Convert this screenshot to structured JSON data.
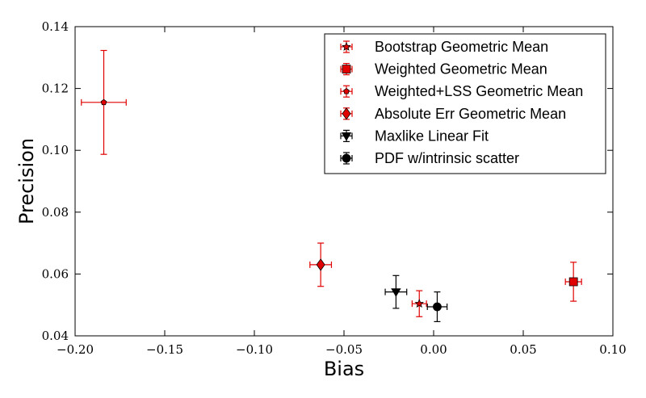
{
  "chart_data": {
    "type": "scatter",
    "title": "",
    "xlabel": "Bias",
    "ylabel": "Precision",
    "xlim": [
      -0.2,
      0.1
    ],
    "ylim": [
      0.04,
      0.14
    ],
    "x_ticks": [
      "−0.20",
      "−0.15",
      "−0.10",
      "−0.05",
      "0.00",
      "0.05",
      "0.10"
    ],
    "x_tick_values": [
      -0.2,
      -0.15,
      -0.1,
      -0.05,
      0.0,
      0.05,
      0.1
    ],
    "y_ticks": [
      "0.04",
      "0.06",
      "0.08",
      "0.10",
      "0.12",
      "0.14"
    ],
    "y_tick_values": [
      0.04,
      0.06,
      0.08,
      0.1,
      0.12,
      0.14
    ],
    "grid": false,
    "legend_position": "top-right",
    "series": [
      {
        "name": "Bootstrap Geometric Mean",
        "color": "#e00000",
        "marker": "star",
        "x": -0.008,
        "y": 0.0504,
        "xerr": 0.004,
        "yerr": 0.0042
      },
      {
        "name": "Weighted Geometric Mean",
        "color": "#e00000",
        "marker": "square",
        "x": 0.078,
        "y": 0.0575,
        "xerr": 0.0045,
        "yerr": 0.0063
      },
      {
        "name": "Weighted+LSS Geometric Mean",
        "color": "#e00000",
        "marker": "pentagon",
        "x": -0.184,
        "y": 0.1155,
        "xerr": 0.0125,
        "yerr": 0.0168
      },
      {
        "name": "Absolute Err Geometric Mean",
        "color": "#e00000",
        "marker": "diamond",
        "x": -0.063,
        "y": 0.063,
        "xerr": 0.006,
        "yerr": 0.007
      },
      {
        "name": "Maxlike Linear Fit",
        "color": "#000000",
        "marker": "triangle-down",
        "x": -0.021,
        "y": 0.0542,
        "xerr": 0.006,
        "yerr": 0.0053
      },
      {
        "name": "PDF w/intrinsic scatter",
        "color": "#000000",
        "marker": "circle",
        "x": 0.002,
        "y": 0.0494,
        "xerr": 0.0055,
        "yerr": 0.0048
      }
    ]
  }
}
